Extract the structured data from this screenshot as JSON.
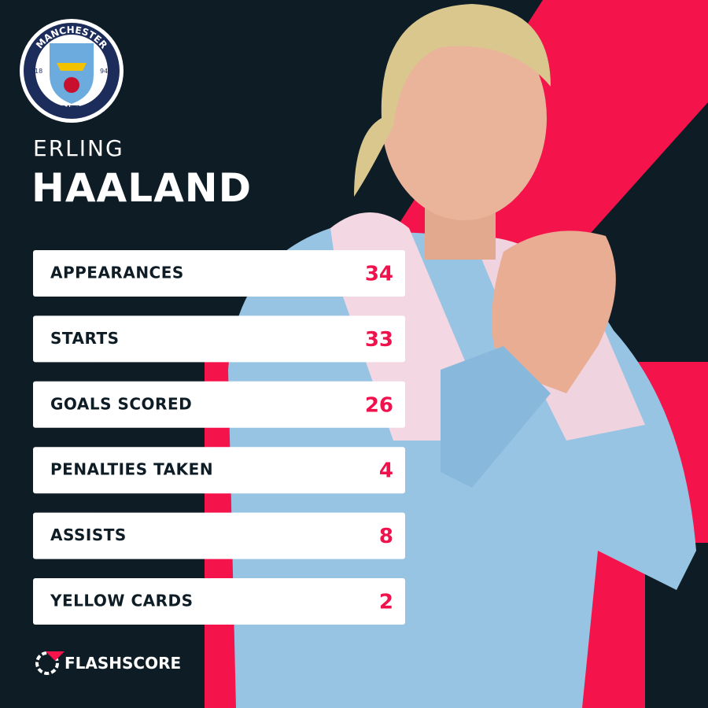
{
  "badge": {
    "top_text": "MANCHESTER",
    "bottom_text": "CITY",
    "left_year": "18",
    "right_year": "94"
  },
  "header": {
    "first_name": "ERLING",
    "last_name": "HAALAND"
  },
  "table": {
    "rows": [
      [
        "APPEARANCES",
        34
      ],
      [
        "STARTS",
        33
      ],
      [
        "GOALS SCORED",
        26
      ],
      [
        "PENALTIES TAKEN",
        4
      ],
      [
        "ASSISTS",
        8
      ],
      [
        "YELLOW CARDS",
        2
      ]
    ]
  },
  "footer": {
    "brand": "FLASHSCORE"
  }
}
